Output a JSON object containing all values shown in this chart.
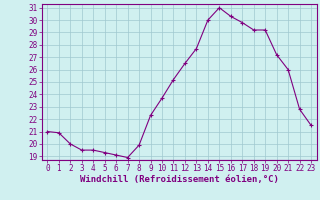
{
  "x": [
    0,
    1,
    2,
    3,
    4,
    5,
    6,
    7,
    8,
    9,
    10,
    11,
    12,
    13,
    14,
    15,
    16,
    17,
    18,
    19,
    20,
    21,
    22,
    23
  ],
  "y": [
    21.0,
    20.9,
    20.0,
    19.5,
    19.5,
    19.3,
    19.1,
    18.9,
    19.9,
    22.3,
    23.7,
    25.2,
    26.5,
    27.7,
    30.0,
    31.0,
    30.3,
    29.8,
    29.2,
    29.2,
    27.2,
    26.0,
    22.8,
    21.5
  ],
  "line_color": "#800080",
  "marker": "+",
  "marker_color": "#800080",
  "bg_color": "#d0f0f0",
  "grid_color": "#a0c8d0",
  "axis_color": "#800080",
  "tick_color": "#800080",
  "xlabel": "Windchill (Refroidissement éolien,°C)",
  "xlabel_color": "#800080",
  "ylim": [
    19,
    31
  ],
  "yticks": [
    19,
    20,
    21,
    22,
    23,
    24,
    25,
    26,
    27,
    28,
    29,
    30,
    31
  ],
  "xticks": [
    0,
    1,
    2,
    3,
    4,
    5,
    6,
    7,
    8,
    9,
    10,
    11,
    12,
    13,
    14,
    15,
    16,
    17,
    18,
    19,
    20,
    21,
    22,
    23
  ],
  "label_fontsize": 6.5,
  "tick_fontsize": 5.5
}
